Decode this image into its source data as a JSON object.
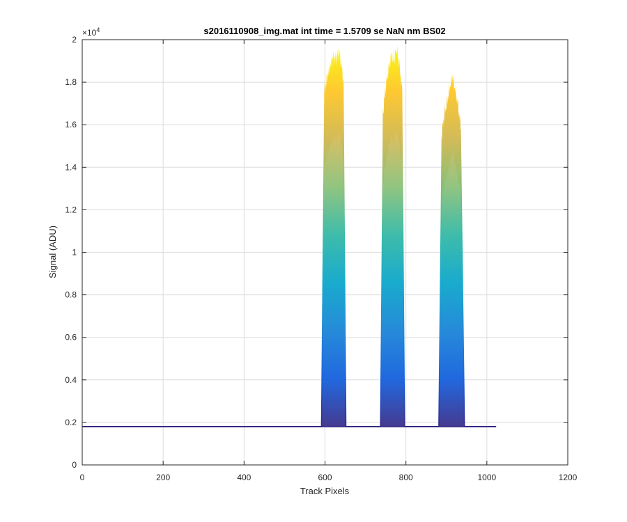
{
  "chart_data": {
    "type": "area",
    "title": "s2016110908_img.mat int time = 1.5709 se  NaN nm BS02",
    "xlabel": "Track Pixels",
    "ylabel": "Signal (ADU)",
    "xlim": [
      0,
      1200
    ],
    "ylim": [
      0,
      20000
    ],
    "xticks": [
      0,
      200,
      400,
      600,
      800,
      1000,
      1200
    ],
    "xtick_labels": [
      "0",
      "200",
      "400",
      "600",
      "800",
      "1000",
      "1200"
    ],
    "yticks": [
      0,
      2000,
      4000,
      6000,
      8000,
      10000,
      12000,
      14000,
      16000,
      18000,
      20000
    ],
    "ytick_labels": [
      "0",
      "0.2",
      "0.4",
      "0.6",
      "0.8",
      "1",
      "1.2",
      "1.4",
      "1.6",
      "1.8",
      "2"
    ],
    "y_exponent": "×10",
    "y_exponent_power": "4",
    "grid": true,
    "colormap": [
      "#352a87",
      "#0f5cdd",
      "#1481d6",
      "#06a4ca",
      "#2eb7a4",
      "#87bf77",
      "#d1bb59",
      "#fec832",
      "#f9fb0e"
    ],
    "baseline": 1800,
    "baseline_x_range": [
      0,
      1023
    ],
    "peaks": [
      {
        "x_start": 590,
        "x_end": 653,
        "x": [
          590,
          598,
          605,
          612,
          620,
          628,
          634,
          640,
          646,
          653
        ],
        "y": [
          1800,
          17500,
          18200,
          18700,
          19200,
          19100,
          19500,
          18900,
          18000,
          1800
        ]
      },
      {
        "x_start": 736,
        "x_end": 798,
        "x": [
          736,
          743,
          750,
          757,
          764,
          770,
          777,
          784,
          791,
          798
        ],
        "y": [
          1800,
          16500,
          17800,
          18600,
          19300,
          19000,
          19600,
          18800,
          17500,
          1800
        ]
      },
      {
        "x_start": 880,
        "x_end": 946,
        "x": [
          880,
          888,
          895,
          902,
          909,
          915,
          922,
          929,
          936,
          946
        ],
        "y": [
          1800,
          15500,
          16500,
          17100,
          17800,
          18300,
          17600,
          16900,
          15800,
          1800
        ]
      }
    ]
  }
}
